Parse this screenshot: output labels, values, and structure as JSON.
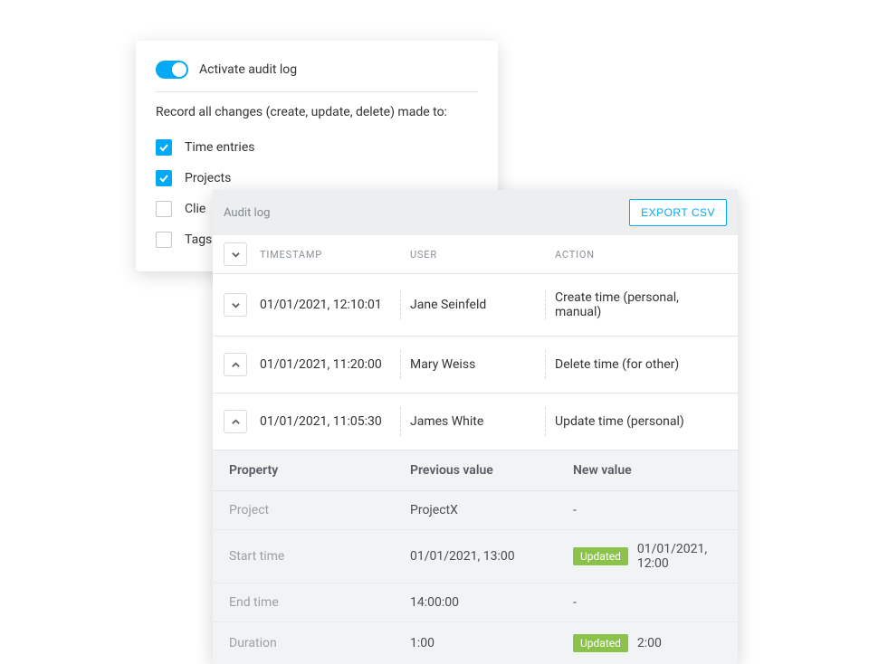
{
  "colors": {
    "accent": "#03a9f4",
    "badge": "#8bc34a",
    "text": "#333333",
    "muted": "#8a9096",
    "border": "#e4e4e4",
    "detail_bg": "#f1f3f4",
    "header_bg": "#eceeef"
  },
  "settings": {
    "toggle_label": "Activate audit log",
    "toggle_on": true,
    "record_text": "Record all changes (create, update, delete) made to:",
    "options": [
      {
        "label": "Time entries",
        "checked": true
      },
      {
        "label": "Projects",
        "checked": true
      },
      {
        "label": "Clie",
        "checked": false
      },
      {
        "label": "Tags",
        "checked": false
      }
    ]
  },
  "audit": {
    "title": "Audit log",
    "export_label": "EXPORT CSV",
    "columns": {
      "timestamp": "TIMESTAMP",
      "user": "USER",
      "action": "ACTION"
    },
    "rows": [
      {
        "expanded": false,
        "chevron": "down",
        "timestamp": "01/01/2021, 12:10:01",
        "user": "Jane Seinfeld",
        "action": "Create time (personal, manual)"
      },
      {
        "expanded": false,
        "chevron": "up",
        "timestamp": "01/01/2021, 11:20:00",
        "user": "Mary Weiss",
        "action": "Delete time (for other)"
      },
      {
        "expanded": true,
        "chevron": "up",
        "timestamp": "01/01/2021, 11:05:30",
        "user": "James White",
        "action": "Update time (personal)"
      }
    ],
    "detail": {
      "headers": {
        "property": "Property",
        "previous": "Previous value",
        "new": "New value"
      },
      "badge_text": "Updated",
      "rows": [
        {
          "property": "Project",
          "previous": "ProjectX",
          "new": "-",
          "updated": false
        },
        {
          "property": "Start time",
          "previous": "01/01/2021, 13:00",
          "new": "01/01/2021, 12:00",
          "updated": true
        },
        {
          "property": "End time",
          "previous": "14:00:00",
          "new": "-",
          "updated": false
        },
        {
          "property": "Duration",
          "previous": "1:00",
          "new": "2:00",
          "updated": true
        }
      ]
    }
  }
}
